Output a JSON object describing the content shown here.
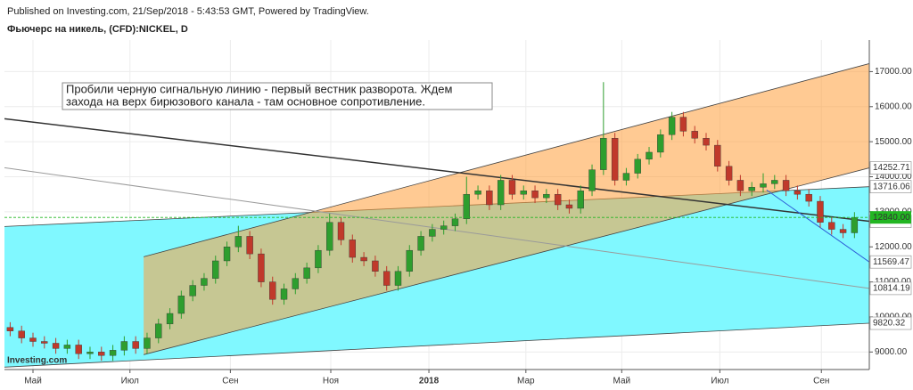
{
  "header": {
    "published": "Published on Investing.com, 21/Sep/2018 - 5:43:53 GMT, Powered by TradingView.",
    "symbol": "Фьючерс на никель, (CFD):NICKEL, D"
  },
  "logo": "Investing.com",
  "chart_data": {
    "type": "candlestick",
    "up_color": "#2e9e2e",
    "down_color": "#c0392b",
    "candles": [
      [
        9700,
        9850,
        9450,
        9600
      ],
      [
        9600,
        9750,
        9250,
        9400
      ],
      [
        9400,
        9550,
        9150,
        9300
      ],
      [
        9300,
        9450,
        9100,
        9250
      ],
      [
        9250,
        9400,
        8950,
        9100
      ],
      [
        9100,
        9350,
        8950,
        9200
      ],
      [
        9200,
        9350,
        8800,
        8950
      ],
      [
        8950,
        9150,
        8800,
        9000
      ],
      [
        9000,
        9150,
        8750,
        8900
      ],
      [
        8900,
        9200,
        8750,
        9050
      ],
      [
        9050,
        9450,
        8900,
        9300
      ],
      [
        9300,
        9450,
        8950,
        9100
      ],
      [
        9100,
        9550,
        8950,
        9400
      ],
      [
        9400,
        9950,
        9250,
        9800
      ],
      [
        9800,
        10250,
        9650,
        10100
      ],
      [
        10100,
        10750,
        9950,
        10600
      ],
      [
        10600,
        11050,
        10450,
        10900
      ],
      [
        10900,
        11250,
        10750,
        11100
      ],
      [
        11100,
        11750,
        10950,
        11600
      ],
      [
        11600,
        12150,
        11450,
        12000
      ],
      [
        12000,
        12600,
        11850,
        12300
      ],
      [
        12300,
        12450,
        11650,
        11800
      ],
      [
        11800,
        11950,
        10850,
        11000
      ],
      [
        11000,
        11150,
        10350,
        10500
      ],
      [
        10500,
        10950,
        10350,
        10800
      ],
      [
        10800,
        11250,
        10650,
        11100
      ],
      [
        11100,
        11550,
        10950,
        11400
      ],
      [
        11400,
        12050,
        11250,
        11900
      ],
      [
        11900,
        12950,
        11750,
        12700
      ],
      [
        12700,
        12850,
        12050,
        12200
      ],
      [
        12200,
        12350,
        11550,
        11700
      ],
      [
        11700,
        11850,
        11450,
        11600
      ],
      [
        11600,
        11750,
        11150,
        11300
      ],
      [
        11300,
        11450,
        10750,
        10900
      ],
      [
        10900,
        11450,
        10750,
        11300
      ],
      [
        11300,
        12050,
        11150,
        11900
      ],
      [
        11900,
        12450,
        11750,
        12300
      ],
      [
        12300,
        12650,
        12150,
        12500
      ],
      [
        12500,
        12750,
        12350,
        12600
      ],
      [
        12600,
        12950,
        12450,
        12800
      ],
      [
        12800,
        14000,
        12650,
        13500
      ],
      [
        13500,
        13750,
        13350,
        13600
      ],
      [
        13600,
        13750,
        13050,
        13200
      ],
      [
        13200,
        14050,
        13050,
        13900
      ],
      [
        13900,
        14050,
        13350,
        13500
      ],
      [
        13500,
        13750,
        13350,
        13600
      ],
      [
        13600,
        13750,
        13250,
        13400
      ],
      [
        13400,
        13650,
        13250,
        13500
      ],
      [
        13500,
        13650,
        13050,
        13200
      ],
      [
        13200,
        13350,
        12950,
        13100
      ],
      [
        13100,
        13750,
        12950,
        13600
      ],
      [
        13600,
        14350,
        13450,
        14200
      ],
      [
        14200,
        16700,
        14050,
        15100
      ],
      [
        15100,
        15250,
        13750,
        13900
      ],
      [
        13900,
        14250,
        13750,
        14100
      ],
      [
        14100,
        14650,
        13950,
        14500
      ],
      [
        14500,
        14850,
        14350,
        14700
      ],
      [
        14700,
        15350,
        14550,
        15200
      ],
      [
        15200,
        15850,
        15050,
        15700
      ],
      [
        15700,
        15850,
        15150,
        15300
      ],
      [
        15300,
        15450,
        14950,
        15100
      ],
      [
        15100,
        15250,
        14750,
        14900
      ],
      [
        14900,
        15050,
        14150,
        14300
      ],
      [
        14300,
        14450,
        13750,
        13900
      ],
      [
        13900,
        14050,
        13450,
        13600
      ],
      [
        13600,
        13850,
        13450,
        13700
      ],
      [
        13700,
        14100,
        13550,
        13800
      ],
      [
        13800,
        14050,
        13650,
        13900
      ],
      [
        13900,
        14050,
        13450,
        13600
      ],
      [
        13600,
        13750,
        13350,
        13500
      ],
      [
        13500,
        13650,
        13150,
        13300
      ],
      [
        13300,
        13450,
        12550,
        12700
      ],
      [
        12700,
        12850,
        12350,
        12500
      ],
      [
        12500,
        12650,
        12250,
        12400
      ],
      [
        12400,
        12990,
        12250,
        12840
      ]
    ],
    "xlim": [
      -0.5,
      75.3
    ],
    "xticks": [
      {
        "value": 2,
        "label": "Май"
      },
      {
        "value": 10.5,
        "label": "Июл"
      },
      {
        "value": 19.3,
        "label": "Сен"
      },
      {
        "value": 28.1,
        "label": "Ноя"
      },
      {
        "value": 36.7,
        "label": "2018"
      },
      {
        "value": 45.2,
        "label": "Мар"
      },
      {
        "value": 53.6,
        "label": "Май"
      },
      {
        "value": 62.2,
        "label": "Июл"
      },
      {
        "value": 71.1,
        "label": "Сен"
      }
    ],
    "ylim": [
      8500,
      17900
    ],
    "yticks": [
      {
        "value": 9000,
        "label": "9000.00"
      },
      {
        "value": 10000,
        "label": "10000.00"
      },
      {
        "value": 11000,
        "label": "11000.00"
      },
      {
        "value": 12000,
        "label": "12000.00"
      },
      {
        "value": 13000,
        "label": "13000.00"
      },
      {
        "value": 14000,
        "label": "14000.00"
      },
      {
        "value": 15000,
        "label": "15000.00"
      },
      {
        "value": 16000,
        "label": "16000.00"
      },
      {
        "value": 17000,
        "label": "17000.00"
      }
    ],
    "grid": true,
    "channels": [
      {
        "color": "#80f8ff",
        "x": [
          -0.5,
          75.3
        ],
        "upper": [
          12581,
          13716.06
        ],
        "lower": [
          8568,
          9820.32
        ],
        "badges": [
          "upper",
          "lower"
        ]
      },
      {
        "color": "#ff9f3a",
        "x": [
          11.7,
          75.3
        ],
        "upper": [
          11717,
          17229
        ],
        "lower": [
          8924,
          14252.71
        ],
        "badges": [
          "lower"
        ]
      }
    ],
    "lines": [
      {
        "color": "#333333",
        "x": [
          -0.5,
          75.3
        ],
        "y": [
          15654,
          12728.9
        ]
      },
      {
        "color": "#9a9a9a",
        "x": [
          -0.5,
          75.3
        ],
        "y": [
          14257,
          10814.19
        ]
      },
      {
        "color": "#2b5bd7",
        "x": [
          66.3,
          75.3
        ],
        "y": [
          13622,
          11569.47
        ]
      }
    ],
    "last_price": {
      "value": 12840,
      "label": "12840.00"
    },
    "last_price_color": "#22b622",
    "annotation": [
      "Пробили черную сигнальную линию - первый вестник разворота. Ждем",
      "захода на верх бирюзового канала - там основное сопротивление."
    ]
  }
}
